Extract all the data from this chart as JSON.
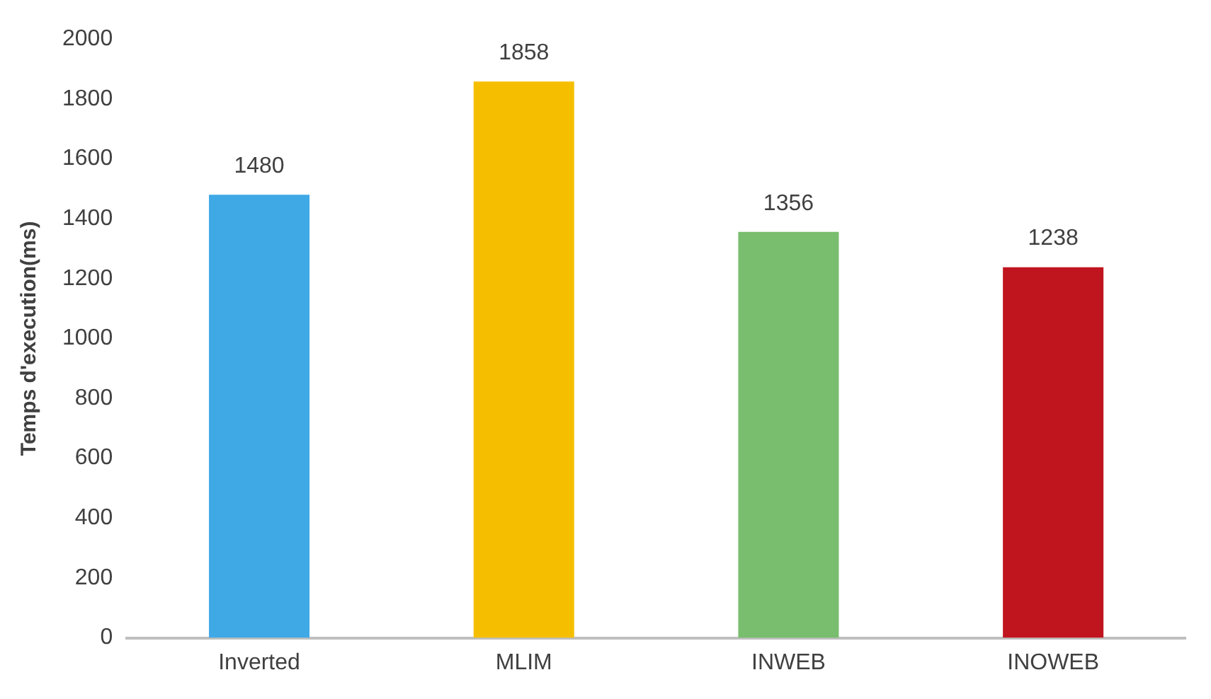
{
  "chart_data": {
    "type": "bar",
    "ylabel": "Temps d'execution(ms)",
    "categories": [
      "Inverted",
      "MLIM",
      "INWEB",
      "INOWEB"
    ],
    "values": [
      1480,
      1858,
      1356,
      1238
    ],
    "colors": [
      "#3fa9e6",
      "#f5bf00",
      "#79bd6e",
      "#c0141e"
    ],
    "ylim": [
      0,
      2000
    ],
    "yticks": [
      0,
      200,
      400,
      600,
      800,
      1000,
      1200,
      1400,
      1600,
      1800,
      2000
    ],
    "grid": false,
    "legend": false,
    "data_labels": true
  }
}
